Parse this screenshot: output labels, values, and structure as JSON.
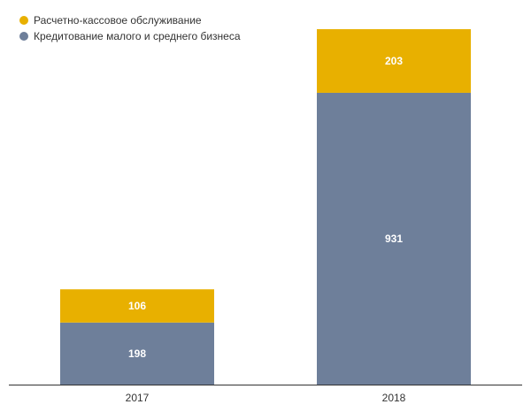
{
  "chart_data": {
    "type": "bar",
    "stacked": true,
    "title": "",
    "xlabel": "",
    "ylabel": "",
    "categories": [
      "2017",
      "2018"
    ],
    "series": [
      {
        "name": "Кредитование малого и среднего бизнеса",
        "color": "#6e7f9a",
        "values": [
          198,
          931
        ]
      },
      {
        "name": "Расчетно-кассовое обслуживание",
        "color": "#e8b000",
        "values": [
          106,
          203
        ]
      }
    ],
    "ylim": [
      0,
      1134
    ],
    "grid": false,
    "legend": "top-left"
  }
}
